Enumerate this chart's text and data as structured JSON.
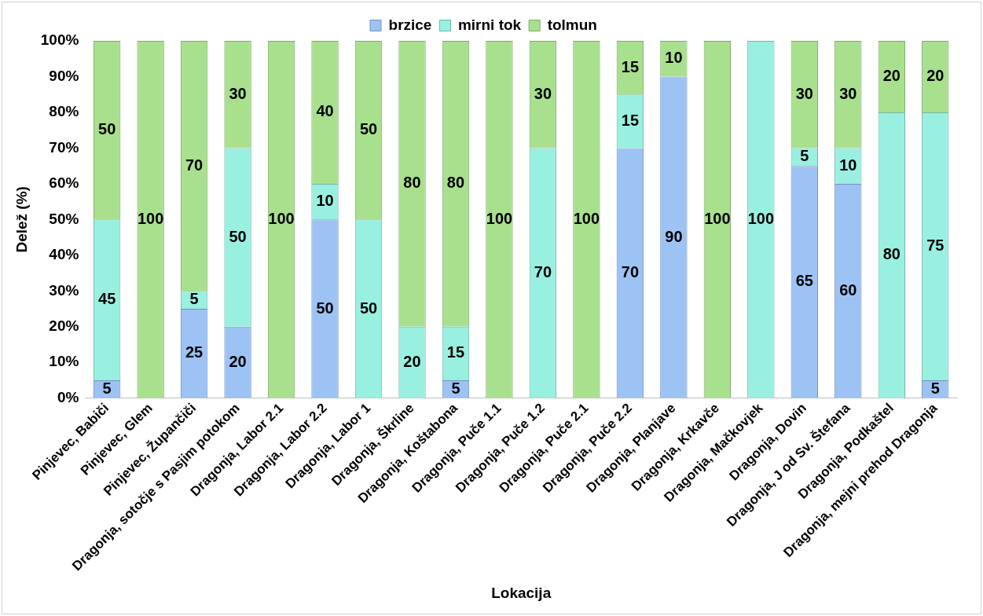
{
  "chart_data": {
    "type": "bar",
    "stacked": true,
    "xlabel": "Lokacija",
    "ylabel": "Delež (%)",
    "legend": "top",
    "grid": false,
    "data_labels": true,
    "categories": [
      "Pinjevec, Babiči",
      "Pinjevec, Glem",
      "Pinjevec, Župančiči",
      "Dragonja, sotočje s Pasjim potokom",
      "Dragonja, Labor 2.1",
      "Dragonja, Labor 2.2",
      "Dragonja, Labor 1",
      "Dragonja, Škrline",
      "Dragonja, Koštabona",
      "Dragonja, Puče 1.1",
      "Dragonja, Puče 1.2",
      "Dragonja, Puče 2.1",
      "Dragonja, Puče 2.2",
      "Dragonja, Planjave",
      "Dragonja, Krkavče",
      "Dragonja, Mačkovjek",
      "Dragonja, Dovin",
      "Dragonja, J od Sv. Štefana",
      "Dragonja, Podkaštel",
      "Dragonja, mejni prehod Dragonja"
    ],
    "series": [
      {
        "name": "brzice",
        "color": "#9dc3f5",
        "values": [
          5,
          null,
          25,
          20,
          null,
          50,
          null,
          null,
          5,
          null,
          null,
          null,
          70,
          90,
          null,
          null,
          65,
          60,
          null,
          5
        ]
      },
      {
        "name": "mirni tok",
        "color": "#99f0e0",
        "values": [
          45,
          null,
          5,
          50,
          null,
          10,
          50,
          20,
          15,
          null,
          70,
          null,
          15,
          null,
          null,
          100,
          5,
          10,
          80,
          75
        ]
      },
      {
        "name": "tolmun",
        "color": "#a9e08e",
        "values": [
          50,
          100,
          70,
          30,
          100,
          40,
          50,
          80,
          80,
          100,
          30,
          100,
          15,
          10,
          100,
          null,
          30,
          30,
          20,
          20
        ]
      }
    ],
    "ylim": [
      0,
      100
    ],
    "yticks": [
      {
        "value": 0,
        "label": "0%"
      },
      {
        "value": 10,
        "label": "10%"
      },
      {
        "value": 20,
        "label": "20%"
      },
      {
        "value": 30,
        "label": "30%"
      },
      {
        "value": 40,
        "label": "40%"
      },
      {
        "value": 50,
        "label": "50%"
      },
      {
        "value": 60,
        "label": "60%"
      },
      {
        "value": 70,
        "label": "70%"
      },
      {
        "value": 80,
        "label": "80%"
      },
      {
        "value": 90,
        "label": "90%"
      },
      {
        "value": 100,
        "label": "100%"
      }
    ]
  }
}
